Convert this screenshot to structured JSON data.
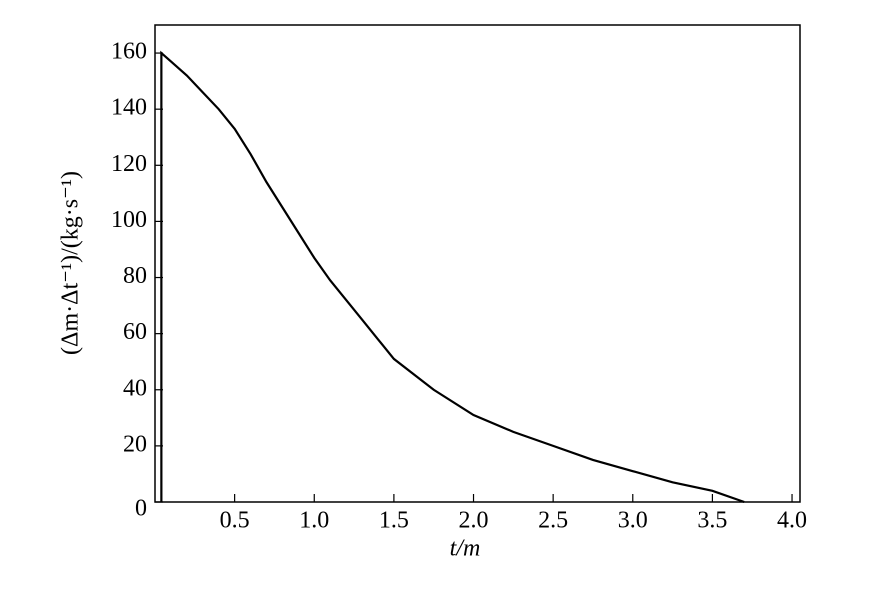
{
  "chart_data": {
    "type": "line",
    "x_label": "t/m",
    "y_label": "(Δm·Δt⁻¹)/(kg·s⁻¹)",
    "x": [
      0.04,
      0.04,
      0.1,
      0.2,
      0.3,
      0.4,
      0.5,
      0.6,
      0.7,
      0.8,
      0.9,
      1.0,
      1.1,
      1.2,
      1.3,
      1.4,
      1.5,
      1.75,
      2.0,
      2.25,
      2.5,
      2.75,
      3.0,
      3.25,
      3.5,
      3.7
    ],
    "series": [
      {
        "color": "#000000",
        "values": [
          0,
          160,
          157,
          152,
          146,
          140,
          133,
          124,
          114,
          105,
          96,
          87,
          79,
          72,
          65,
          58,
          51,
          40,
          31,
          25,
          20,
          15,
          11,
          7,
          4,
          0
        ]
      }
    ],
    "xlim": [
      0,
      4.05
    ],
    "ylim": [
      0,
      170
    ],
    "xticks": [
      0.5,
      {
        "value": 1,
        "label": "1.0"
      },
      1.5,
      {
        "value": 2,
        "label": "2.0"
      },
      2.5,
      {
        "value": 3,
        "label": "3.0"
      },
      3.5,
      {
        "value": 4,
        "label": "4.0"
      }
    ],
    "yticks": [
      0,
      20,
      40,
      60,
      80,
      100,
      120,
      140,
      160
    ],
    "grid": false
  }
}
